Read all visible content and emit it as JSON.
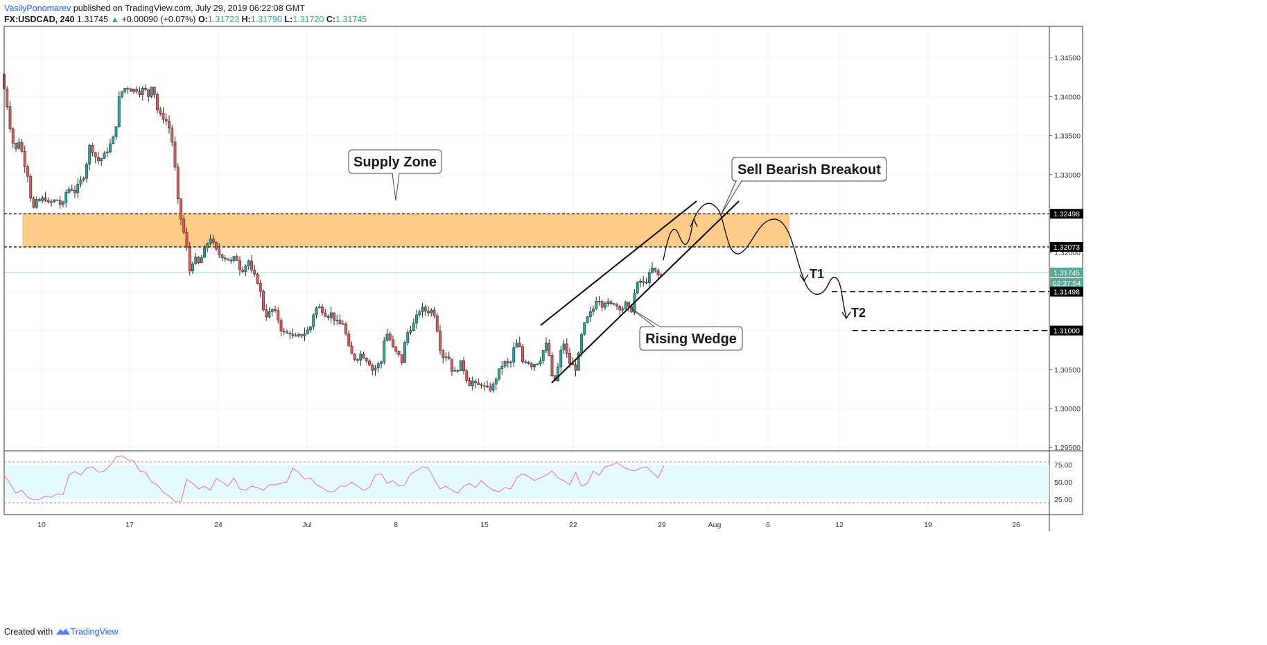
{
  "header": {
    "author": "VasilyPonomarev",
    "published": "published on TradingView.com, July 29, 2019 06:22:08 GMT",
    "symbol": "FX:USDCAD, 240",
    "last": "1.31745",
    "change": "+0.00090 (+0.07%)",
    "o_label": "O:",
    "o_val": "1.31723",
    "h_label": "H:",
    "h_val": "1.31790",
    "l_label": "L:",
    "l_val": "1.31720",
    "c_label": "C:",
    "c_val": "1.31745"
  },
  "footer": {
    "created_with": "Created with",
    "brand": "TradingView"
  },
  "colors": {
    "bull": "#26a69a",
    "bear": "#ef5350",
    "candle_outline": "#2b2b2b",
    "supply_zone": "#ffcc8a",
    "rsi_line": "#e16cb5",
    "rsi_band": "#e4fafd"
  },
  "chart_data": {
    "type": "candlestick",
    "symbol": "FX:USDCAD",
    "interval": "240",
    "ylim": [
      1.2925,
      1.3475
    ],
    "price_ticks": [
      "1.34500",
      "1.34000",
      "1.33500",
      "1.33000",
      "1.32000",
      "1.30500",
      "1.30000",
      "1.29500"
    ],
    "x_labels": [
      "10",
      "17",
      "24",
      "Jul",
      "8",
      "15",
      "22",
      "29",
      "Aug",
      "6",
      "12",
      "19",
      "26"
    ],
    "grid": true,
    "close_path": [
      [
        0,
        1.3425
      ],
      [
        6,
        1.341
      ],
      [
        12,
        1.338
      ],
      [
        16,
        1.335
      ],
      [
        22,
        1.333
      ],
      [
        28,
        1.3345
      ],
      [
        34,
        1.3318
      ],
      [
        40,
        1.33
      ],
      [
        46,
        1.326
      ],
      [
        50,
        1.3255
      ],
      [
        54,
        1.327
      ],
      [
        58,
        1.3265
      ],
      [
        64,
        1.3272
      ],
      [
        70,
        1.3262
      ],
      [
        76,
        1.3266
      ],
      [
        82,
        1.3268
      ],
      [
        90,
        1.3258
      ],
      [
        96,
        1.328
      ],
      [
        102,
        1.3283
      ],
      [
        108,
        1.3278
      ],
      [
        114,
        1.3288
      ],
      [
        122,
        1.33
      ],
      [
        130,
        1.334
      ],
      [
        136,
        1.3325
      ],
      [
        142,
        1.3318
      ],
      [
        148,
        1.3322
      ],
      [
        154,
        1.333
      ],
      [
        160,
        1.334
      ],
      [
        166,
        1.3352
      ],
      [
        172,
        1.34
      ],
      [
        178,
        1.341
      ],
      [
        184,
        1.3412
      ],
      [
        190,
        1.3408
      ],
      [
        196,
        1.341
      ],
      [
        202,
        1.3405
      ],
      [
        208,
        1.3412
      ],
      [
        214,
        1.34
      ],
      [
        220,
        1.342
      ],
      [
        226,
        1.3385
      ],
      [
        232,
        1.3375
      ],
      [
        238,
        1.3372
      ],
      [
        244,
        1.336
      ],
      [
        250,
        1.3335
      ],
      [
        256,
        1.327
      ],
      [
        262,
        1.3238
      ],
      [
        268,
        1.3215
      ],
      [
        274,
        1.3175
      ],
      [
        280,
        1.3195
      ],
      [
        286,
        1.3185
      ],
      [
        292,
        1.3196
      ],
      [
        298,
        1.321
      ],
      [
        304,
        1.322
      ],
      [
        310,
        1.3205
      ],
      [
        316,
        1.3198
      ],
      [
        322,
        1.3195
      ],
      [
        328,
        1.3192
      ],
      [
        334,
        1.3188
      ],
      [
        340,
        1.3196
      ],
      [
        346,
        1.318
      ],
      [
        352,
        1.3178
      ],
      [
        358,
        1.3192
      ],
      [
        364,
        1.3172
      ],
      [
        370,
        1.3168
      ],
      [
        376,
        1.3148
      ],
      [
        382,
        1.3118
      ],
      [
        388,
        1.3122
      ],
      [
        394,
        1.3128
      ],
      [
        400,
        1.3118
      ],
      [
        406,
        1.31
      ],
      [
        412,
        1.3095
      ],
      [
        418,
        1.3098
      ],
      [
        424,
        1.309
      ],
      [
        430,
        1.3092
      ],
      [
        436,
        1.3095
      ],
      [
        442,
        1.3098
      ],
      [
        448,
        1.3105
      ],
      [
        454,
        1.3128
      ],
      [
        460,
        1.313
      ],
      [
        466,
        1.3125
      ],
      [
        472,
        1.3118
      ],
      [
        478,
        1.3122
      ],
      [
        484,
        1.3112
      ],
      [
        490,
        1.3108
      ],
      [
        496,
        1.311
      ],
      [
        502,
        1.308
      ],
      [
        508,
        1.3068
      ],
      [
        514,
        1.3062
      ],
      [
        520,
        1.307
      ],
      [
        526,
        1.3066
      ],
      [
        532,
        1.306
      ],
      [
        538,
        1.3048
      ],
      [
        544,
        1.3055
      ],
      [
        550,
        1.306
      ],
      [
        556,
        1.31
      ],
      [
        562,
        1.309
      ],
      [
        568,
        1.3075
      ],
      [
        574,
        1.307
      ],
      [
        580,
        1.306
      ],
      [
        586,
        1.3095
      ],
      [
        592,
        1.3102
      ],
      [
        598,
        1.311
      ],
      [
        604,
        1.3125
      ],
      [
        610,
        1.3128
      ],
      [
        616,
        1.3124
      ],
      [
        622,
        1.3126
      ],
      [
        628,
        1.312
      ],
      [
        634,
        1.308
      ],
      [
        640,
        1.3065
      ],
      [
        646,
        1.307
      ],
      [
        652,
        1.305
      ],
      [
        658,
        1.3045
      ],
      [
        664,
        1.306
      ],
      [
        670,
        1.3048
      ],
      [
        676,
        1.303
      ],
      [
        682,
        1.3035
      ],
      [
        688,
        1.3028
      ],
      [
        694,
        1.3032
      ],
      [
        700,
        1.3026
      ],
      [
        706,
        1.3024
      ],
      [
        712,
        1.303
      ],
      [
        718,
        1.3045
      ],
      [
        724,
        1.3055
      ],
      [
        730,
        1.306
      ],
      [
        736,
        1.3055
      ],
      [
        742,
        1.308
      ],
      [
        748,
        1.3085
      ],
      [
        754,
        1.306
      ],
      [
        760,
        1.3062
      ],
      [
        766,
        1.3055
      ],
      [
        772,
        1.3058
      ],
      [
        778,
        1.306
      ],
      [
        784,
        1.3075
      ],
      [
        790,
        1.3085
      ],
      [
        796,
        1.304
      ],
      [
        802,
        1.3035
      ],
      [
        808,
        1.307
      ],
      [
        814,
        1.3085
      ],
      [
        820,
        1.306
      ],
      [
        826,
        1.3055
      ],
      [
        832,
        1.305
      ],
      [
        838,
        1.309
      ],
      [
        844,
        1.311
      ],
      [
        850,
        1.312
      ],
      [
        856,
        1.3128
      ],
      [
        862,
        1.3145
      ],
      [
        868,
        1.3132
      ],
      [
        874,
        1.3138
      ],
      [
        880,
        1.3132
      ],
      [
        886,
        1.3136
      ],
      [
        892,
        1.313
      ],
      [
        898,
        1.3128
      ],
      [
        904,
        1.3136
      ],
      [
        910,
        1.312
      ],
      [
        916,
        1.315
      ],
      [
        922,
        1.3165
      ],
      [
        928,
        1.316
      ],
      [
        934,
        1.3165
      ],
      [
        940,
        1.318
      ],
      [
        946,
        1.3175
      ],
      [
        952,
        1.3168
      ],
      [
        957,
        1.31745
      ]
    ],
    "annotations": {
      "supply_zone_label": "Supply Zone",
      "breakout_label": "Sell Bearish Breakout",
      "wedge_label": "Rising Wedge",
      "target1": "T1",
      "target2": "T2",
      "supply_zone_range": [
        1.32073,
        1.32498
      ]
    },
    "price_badges": [
      {
        "text": "1.32498",
        "price": 1.32498,
        "style": "dark"
      },
      {
        "text": "1.32073",
        "price": 1.32073,
        "style": "dark"
      },
      {
        "text": "1.31745",
        "price": 1.31745,
        "style": "green"
      },
      {
        "text": "02:37:54",
        "price": 1.3161,
        "style": "green"
      },
      {
        "text": "1.31498",
        "price": 1.31498,
        "style": "dark"
      },
      {
        "text": "1.31000",
        "price": 1.31,
        "style": "dark"
      }
    ],
    "rsi": {
      "ticks": [
        "75.00",
        "50.00",
        "25.00"
      ],
      "band": [
        30,
        70
      ],
      "values": [
        60,
        48,
        34,
        38,
        28,
        24,
        25,
        30,
        28,
        33,
        32,
        60,
        65,
        60,
        70,
        72,
        64,
        66,
        74,
        86,
        88,
        82,
        80,
        66,
        64,
        50,
        46,
        35,
        30,
        22,
        22,
        54,
        48,
        40,
        44,
        38,
        55,
        50,
        44,
        56,
        40,
        38,
        44,
        42,
        38,
        46,
        46,
        48,
        50,
        70,
        64,
        54,
        56,
        46,
        42,
        36,
        36,
        44,
        44,
        50,
        44,
        38,
        42,
        60,
        62,
        48,
        52,
        44,
        46,
        62,
        66,
        72,
        70,
        54,
        40,
        44,
        38,
        34,
        44,
        48,
        42,
        52,
        44,
        38,
        36,
        42,
        40,
        56,
        62,
        58,
        52,
        56,
        60,
        66,
        56,
        52,
        46,
        64,
        44,
        48,
        66,
        60,
        72,
        74,
        78,
        72,
        68,
        66,
        70,
        72,
        64,
        56,
        74
      ]
    }
  }
}
